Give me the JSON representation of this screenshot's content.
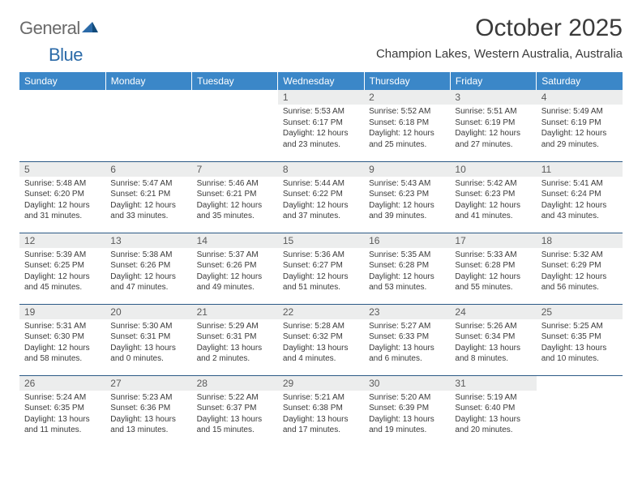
{
  "logo": {
    "text_general": "General",
    "text_blue": "Blue"
  },
  "title": "October 2025",
  "location": "Champion Lakes, Western Australia, Australia",
  "colors": {
    "header_bg": "#3b87c8",
    "header_text": "#ffffff",
    "daynum_bg": "#eceded",
    "rule": "#2c5a86",
    "body_text": "#3a3a3a",
    "logo_gray": "#6a6a6a",
    "logo_blue": "#2b6aa8"
  },
  "weekdays": [
    "Sunday",
    "Monday",
    "Tuesday",
    "Wednesday",
    "Thursday",
    "Friday",
    "Saturday"
  ],
  "weeks": [
    [
      null,
      null,
      null,
      {
        "n": "1",
        "sr": "5:53 AM",
        "ss": "6:17 PM",
        "dl": "12 hours and 23 minutes."
      },
      {
        "n": "2",
        "sr": "5:52 AM",
        "ss": "6:18 PM",
        "dl": "12 hours and 25 minutes."
      },
      {
        "n": "3",
        "sr": "5:51 AM",
        "ss": "6:19 PM",
        "dl": "12 hours and 27 minutes."
      },
      {
        "n": "4",
        "sr": "5:49 AM",
        "ss": "6:19 PM",
        "dl": "12 hours and 29 minutes."
      }
    ],
    [
      {
        "n": "5",
        "sr": "5:48 AM",
        "ss": "6:20 PM",
        "dl": "12 hours and 31 minutes."
      },
      {
        "n": "6",
        "sr": "5:47 AM",
        "ss": "6:21 PM",
        "dl": "12 hours and 33 minutes."
      },
      {
        "n": "7",
        "sr": "5:46 AM",
        "ss": "6:21 PM",
        "dl": "12 hours and 35 minutes."
      },
      {
        "n": "8",
        "sr": "5:44 AM",
        "ss": "6:22 PM",
        "dl": "12 hours and 37 minutes."
      },
      {
        "n": "9",
        "sr": "5:43 AM",
        "ss": "6:23 PM",
        "dl": "12 hours and 39 minutes."
      },
      {
        "n": "10",
        "sr": "5:42 AM",
        "ss": "6:23 PM",
        "dl": "12 hours and 41 minutes."
      },
      {
        "n": "11",
        "sr": "5:41 AM",
        "ss": "6:24 PM",
        "dl": "12 hours and 43 minutes."
      }
    ],
    [
      {
        "n": "12",
        "sr": "5:39 AM",
        "ss": "6:25 PM",
        "dl": "12 hours and 45 minutes."
      },
      {
        "n": "13",
        "sr": "5:38 AM",
        "ss": "6:26 PM",
        "dl": "12 hours and 47 minutes."
      },
      {
        "n": "14",
        "sr": "5:37 AM",
        "ss": "6:26 PM",
        "dl": "12 hours and 49 minutes."
      },
      {
        "n": "15",
        "sr": "5:36 AM",
        "ss": "6:27 PM",
        "dl": "12 hours and 51 minutes."
      },
      {
        "n": "16",
        "sr": "5:35 AM",
        "ss": "6:28 PM",
        "dl": "12 hours and 53 minutes."
      },
      {
        "n": "17",
        "sr": "5:33 AM",
        "ss": "6:28 PM",
        "dl": "12 hours and 55 minutes."
      },
      {
        "n": "18",
        "sr": "5:32 AM",
        "ss": "6:29 PM",
        "dl": "12 hours and 56 minutes."
      }
    ],
    [
      {
        "n": "19",
        "sr": "5:31 AM",
        "ss": "6:30 PM",
        "dl": "12 hours and 58 minutes."
      },
      {
        "n": "20",
        "sr": "5:30 AM",
        "ss": "6:31 PM",
        "dl": "13 hours and 0 minutes."
      },
      {
        "n": "21",
        "sr": "5:29 AM",
        "ss": "6:31 PM",
        "dl": "13 hours and 2 minutes."
      },
      {
        "n": "22",
        "sr": "5:28 AM",
        "ss": "6:32 PM",
        "dl": "13 hours and 4 minutes."
      },
      {
        "n": "23",
        "sr": "5:27 AM",
        "ss": "6:33 PM",
        "dl": "13 hours and 6 minutes."
      },
      {
        "n": "24",
        "sr": "5:26 AM",
        "ss": "6:34 PM",
        "dl": "13 hours and 8 minutes."
      },
      {
        "n": "25",
        "sr": "5:25 AM",
        "ss": "6:35 PM",
        "dl": "13 hours and 10 minutes."
      }
    ],
    [
      {
        "n": "26",
        "sr": "5:24 AM",
        "ss": "6:35 PM",
        "dl": "13 hours and 11 minutes."
      },
      {
        "n": "27",
        "sr": "5:23 AM",
        "ss": "6:36 PM",
        "dl": "13 hours and 13 minutes."
      },
      {
        "n": "28",
        "sr": "5:22 AM",
        "ss": "6:37 PM",
        "dl": "13 hours and 15 minutes."
      },
      {
        "n": "29",
        "sr": "5:21 AM",
        "ss": "6:38 PM",
        "dl": "13 hours and 17 minutes."
      },
      {
        "n": "30",
        "sr": "5:20 AM",
        "ss": "6:39 PM",
        "dl": "13 hours and 19 minutes."
      },
      {
        "n": "31",
        "sr": "5:19 AM",
        "ss": "6:40 PM",
        "dl": "13 hours and 20 minutes."
      },
      null
    ]
  ],
  "labels": {
    "sunrise": "Sunrise:",
    "sunset": "Sunset:",
    "daylight": "Daylight:"
  }
}
